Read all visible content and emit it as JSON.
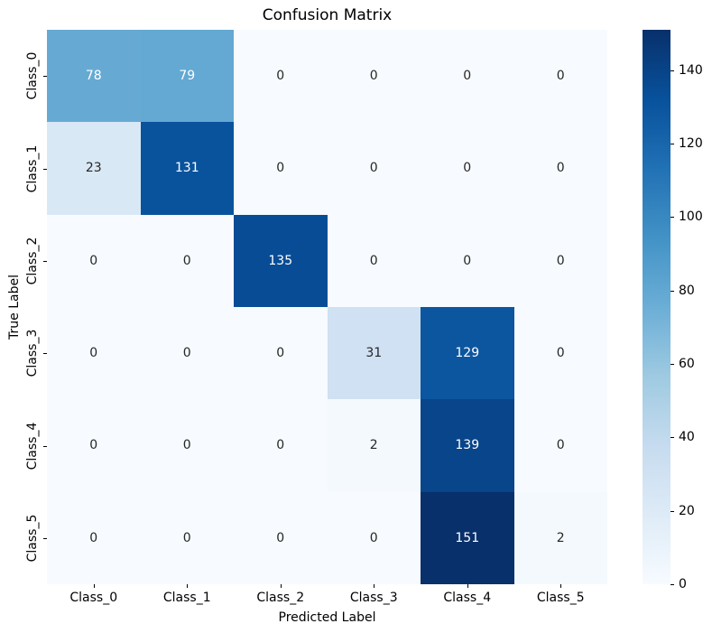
{
  "chart_data": {
    "type": "heatmap",
    "title": "Confusion Matrix",
    "xlabel": "Predicted Label",
    "ylabel": "True Label",
    "x_tick_labels": [
      "Class_0",
      "Class_1",
      "Class_2",
      "Class_3",
      "Class_4",
      "Class_5"
    ],
    "y_tick_labels": [
      "Class_0",
      "Class_1",
      "Class_2",
      "Class_3",
      "Class_4",
      "Class_5"
    ],
    "matrix": [
      [
        78,
        79,
        0,
        0,
        0,
        0
      ],
      [
        23,
        131,
        0,
        0,
        0,
        0
      ],
      [
        0,
        0,
        135,
        0,
        0,
        0
      ],
      [
        0,
        0,
        0,
        31,
        129,
        0
      ],
      [
        0,
        0,
        0,
        2,
        139,
        0
      ],
      [
        0,
        0,
        0,
        0,
        151,
        2
      ]
    ],
    "vmin": 0,
    "vmax": 151,
    "colormap": "Blues",
    "colormap_stops": [
      "#f7fbff",
      "#deebf7",
      "#c6dbef",
      "#9ecae1",
      "#6baed6",
      "#4292c6",
      "#2171b5",
      "#08519c",
      "#08306b"
    ],
    "colorbar_ticks": [
      0,
      20,
      40,
      60,
      80,
      100,
      120,
      140
    ],
    "annotation_color_light_cell": "#262626",
    "annotation_color_dark_cell": "#ffffff",
    "background_color": "#ffffff",
    "legend_position": "colorbar-right",
    "grid": false
  }
}
